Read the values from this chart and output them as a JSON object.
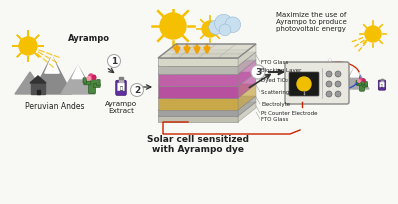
{
  "bg_color": "#f8f8f5",
  "title": "Solar cell sensitized\nwith Ayrampo dye",
  "label_ayrampo": "Ayrampo",
  "label_andes": "Peruvian Andes",
  "label_extract": "Ayrampo\nExtract",
  "label_right": "Maximize the use of\nAyrampo to produce\nphotovoltaic energy",
  "sun_color": "#f5c000",
  "sun_ray_color": "#f5c000",
  "arrow_down_color": "#f0a000",
  "arrow_dark": "#333333",
  "layer_colors": [
    "#e0e0d0",
    "#c0c0b8",
    "#c864a0",
    "#c050a0",
    "#806898",
    "#909090",
    "#b8b8a8"
  ],
  "layer_labels": [
    "FTO Glass",
    "Blocking Layer",
    "Dyed TiO₂",
    "Scattering Layer",
    "Electrolyte",
    "Pt Counter Electrode",
    "FTO Glass"
  ],
  "wire_red": "#cc2200",
  "wire_blue": "#2244cc",
  "cloud_color": "#c8dff0",
  "cloud_edge": "#9ab8d0",
  "mountain_color1": "#909090",
  "mountain_color2": "#a8a8a8",
  "cactus_color": "#4a8840",
  "house_color": "#555555",
  "bottle_color": "#6030a0"
}
